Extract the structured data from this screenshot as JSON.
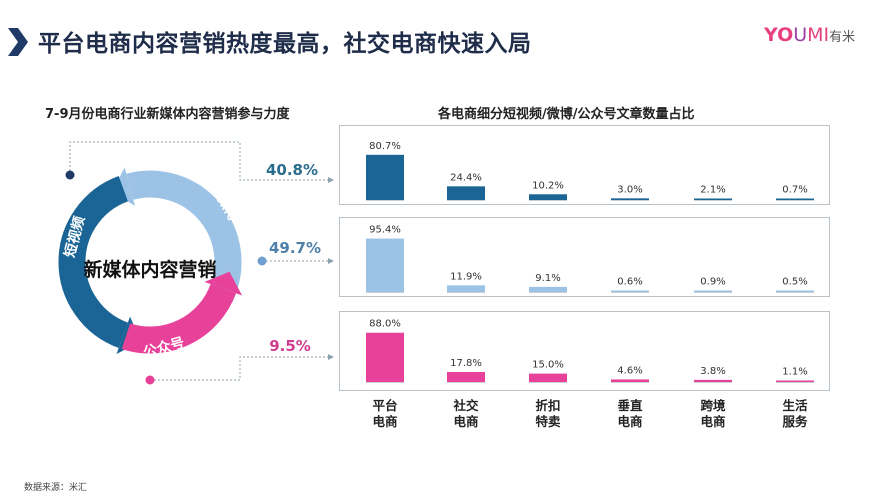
{
  "header": {
    "title": "平台电商内容营销热度最高，社交电商快速入局",
    "logo_text": "YOUMI有米",
    "logo_parts": [
      "YO",
      "U",
      "MI",
      "有米"
    ]
  },
  "left": {
    "title": "7-9月份电商行业新媒体内容营销参与力度",
    "center_label": "新媒体内容营销",
    "segments": [
      {
        "name": "短视频",
        "value": "40.8%",
        "color": "#1a6596"
      },
      {
        "name": "微博",
        "value": "49.7%",
        "color": "#9cc3e6"
      },
      {
        "name": "公众号",
        "value": "9.5%",
        "color": "#e8419a"
      }
    ]
  },
  "footer": {
    "source": "数据来源：米汇"
  },
  "chart_data": {
    "type": "bar",
    "title": "各电商细分短视频/微博/公众号文章数量占比",
    "categories": [
      "平台\n电商",
      "社交\n电商",
      "折扣\n特卖",
      "垂直\n电商",
      "跨境\n电商",
      "生活\n服务"
    ],
    "category_lines": [
      [
        "平台",
        "电商"
      ],
      [
        "社交",
        "电商"
      ],
      [
        "折扣",
        "特卖"
      ],
      [
        "垂直",
        "电商"
      ],
      [
        "跨境",
        "电商"
      ],
      [
        "生活",
        "服务"
      ]
    ],
    "ylim": [
      0,
      100
    ],
    "unit": "%",
    "grid": false,
    "series": [
      {
        "segment": "短视频",
        "color": "#1a6596",
        "values": [
          80.7,
          24.4,
          10.2,
          3.0,
          2.1,
          0.7
        ],
        "labels": [
          "80.7%",
          "24.4%",
          "10.2%",
          "3.0%",
          "2.1%",
          "0.7%"
        ]
      },
      {
        "segment": "微博",
        "color": "#9cc3e6",
        "values": [
          95.4,
          11.9,
          9.1,
          0.6,
          0.9,
          0.5
        ],
        "labels": [
          "95.4%",
          "11.9%",
          "9.1%",
          "0.6%",
          "0.9%",
          "0.5%"
        ]
      },
      {
        "segment": "公众号",
        "color": "#e8419a",
        "values": [
          88.0,
          17.8,
          15.0,
          4.6,
          3.8,
          1.1
        ],
        "labels": [
          "88.0%",
          "17.8%",
          "15.0%",
          "4.6%",
          "3.8%",
          "1.1%"
        ]
      }
    ]
  }
}
